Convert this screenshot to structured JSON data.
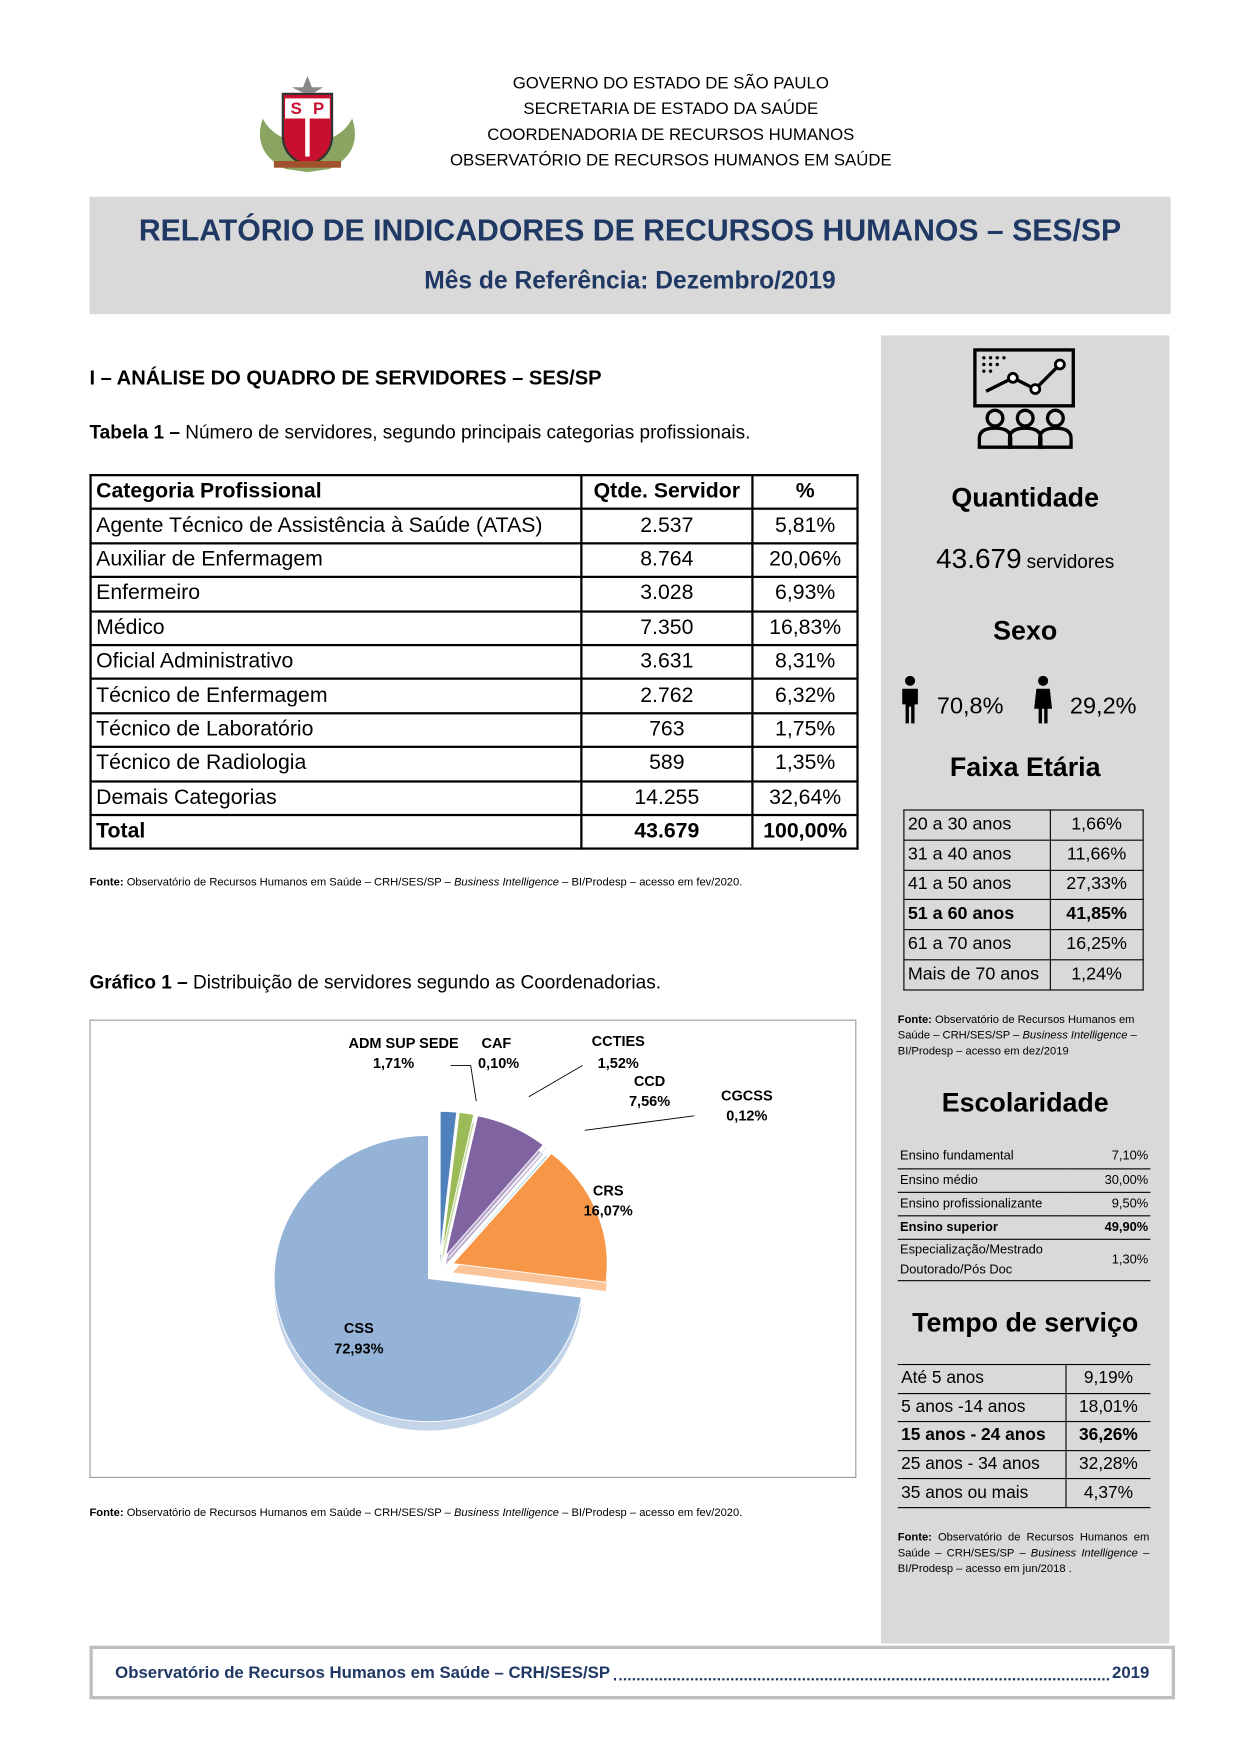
{
  "header": {
    "lines": [
      "GOVERNO DO ESTADO DE SÃO PAULO",
      "SECRETARIA DE ESTADO DA SAÚDE",
      "COORDENADORIA DE RECURSOS HUMANOS",
      "OBSERVATÓRIO DE RECURSOS HUMANOS EM SAÚDE"
    ],
    "title": "RELATÓRIO DE INDICADORES DE RECURSOS HUMANOS – SES/SP",
    "subtitle": "Mês de Referência: Dezembro/2019"
  },
  "section": {
    "title": "I – ANÁLISE DO QUADRO DE SERVIDORES – SES/SP"
  },
  "table1": {
    "caption_label": "Tabela 1 –",
    "caption": " Número de servidores, segundo principais categorias profissionais.",
    "columns": [
      "Categoria Profissional",
      "Qtde. Servidor",
      "%"
    ],
    "rows": [
      [
        "Agente Técnico de Assistência à Saúde (ATAS)",
        "2.537",
        "5,81%"
      ],
      [
        "Auxiliar de Enfermagem",
        "8.764",
        "20,06%"
      ],
      [
        "Enfermeiro",
        "3.028",
        "6,93%"
      ],
      [
        "Médico",
        "7.350",
        "16,83%"
      ],
      [
        "Oficial Administrativo",
        "3.631",
        "8,31%"
      ],
      [
        "Técnico de Enfermagem",
        "2.762",
        "6,32%"
      ],
      [
        "Técnico de Laboratório",
        "763",
        "1,75%"
      ],
      [
        "Técnico de Radiologia",
        "589",
        "1,35%"
      ],
      [
        "Demais Categorias",
        "14.255",
        "32,64%"
      ]
    ],
    "total": [
      "Total",
      "43.679",
      "100,00%"
    ]
  },
  "source_fev2020": {
    "label": "Fonte:",
    "text": " Observatório de Recursos Humanos em Saúde – CRH/SES/SP – ",
    "italic": "Business Intelligence",
    "end": " – BI/Prodesp – acesso em fev/2020."
  },
  "chart1": {
    "caption_label": "Gráfico 1 –",
    "caption": " Distribuição de servidores segundo as Coordenadorias."
  },
  "chart_data": {
    "type": "pie",
    "categories": [
      "ADM SUP SEDE",
      "CAF",
      "CCTIES",
      "CCD",
      "CGCSS",
      "CRS",
      "CSS"
    ],
    "values": [
      1.71,
      0.1,
      1.52,
      7.56,
      0.12,
      16.07,
      72.93
    ],
    "value_labels": [
      "1,71%",
      "0,10%",
      "1,52%",
      "7,56%",
      "0,12%",
      "16,07%",
      "72,93%"
    ],
    "colors": [
      "#4f81bd",
      "#c0504d",
      "#9bbb59",
      "#8064a2",
      "#4bacc6",
      "#f79646",
      "#95b3d7"
    ]
  },
  "sidebar": {
    "quantidade": {
      "title": "Quantidade",
      "value": "43.679",
      "unit": "servidores"
    },
    "sexo": {
      "title": "Sexo",
      "male": "70,8%",
      "female": "29,2%"
    },
    "faixa": {
      "title": "Faixa Etária",
      "bold_row": 3,
      "rows": [
        [
          "20 a 30 anos",
          "1,66%"
        ],
        [
          "31 a 40 anos",
          "11,66%"
        ],
        [
          "41 a 50 anos",
          "27,33%"
        ],
        [
          "51 a 60 anos",
          "41,85%"
        ],
        [
          "61 a 70 anos",
          "16,25%"
        ],
        [
          "Mais de 70 anos",
          "1,24%"
        ]
      ]
    },
    "source_dez2019": {
      "label": "Fonte:",
      "text": " Observatório de Recursos Humanos em Saúde – CRH/SES/SP – ",
      "italic": "Business Intelligence",
      "end": " – BI/Prodesp – acesso em dez/2019"
    },
    "escolaridade": {
      "title": "Escolaridade",
      "bold_row": 3,
      "rows": [
        [
          "Ensino fundamental",
          "7,10%"
        ],
        [
          "Ensino médio",
          "30,00%"
        ],
        [
          "Ensino profissionalizante",
          "9,50%"
        ],
        [
          "Ensino superior",
          "49,90%"
        ],
        [
          "Especialização/Mestrado Doutorado/Pós Doc",
          "1,30%"
        ]
      ]
    },
    "tempo": {
      "title": "Tempo de serviço",
      "bold_row": 2,
      "rows": [
        [
          "Até 5 anos",
          "9,19%"
        ],
        [
          "5 anos -14 anos",
          "18,01%"
        ],
        [
          "15 anos - 24 anos",
          "36,26%"
        ],
        [
          "25 anos - 34 anos",
          "32,28%"
        ],
        [
          "35 anos ou mais",
          "4,37%"
        ]
      ]
    },
    "source_jun2018": {
      "label": "Fonte:",
      "text": " Observatório de Recursos Humanos em Saúde – CRH/SES/SP – ",
      "italic": "Business Intelligence",
      "end": " – BI/Prodesp – acesso em jun/2018 ."
    }
  },
  "footer": {
    "text": "Observatório de Recursos Humanos em Saúde – CRH/SES/SP",
    "year": "2019"
  }
}
